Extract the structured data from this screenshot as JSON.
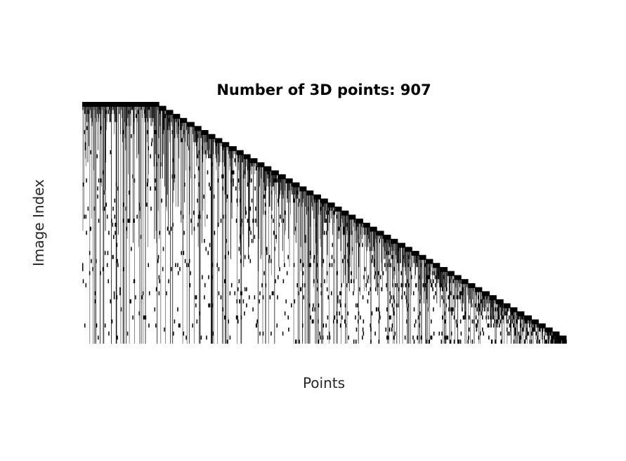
{
  "chart_data": {
    "type": "heatmap",
    "title": "Number of 3D points: 907",
    "xlabel": "Points",
    "ylabel": "Image Index",
    "num_points": 907,
    "num_images": 60,
    "axes_visible": false,
    "grid": false,
    "colors": {
      "observed": "#000000",
      "background": "#ffffff"
    }
  }
}
